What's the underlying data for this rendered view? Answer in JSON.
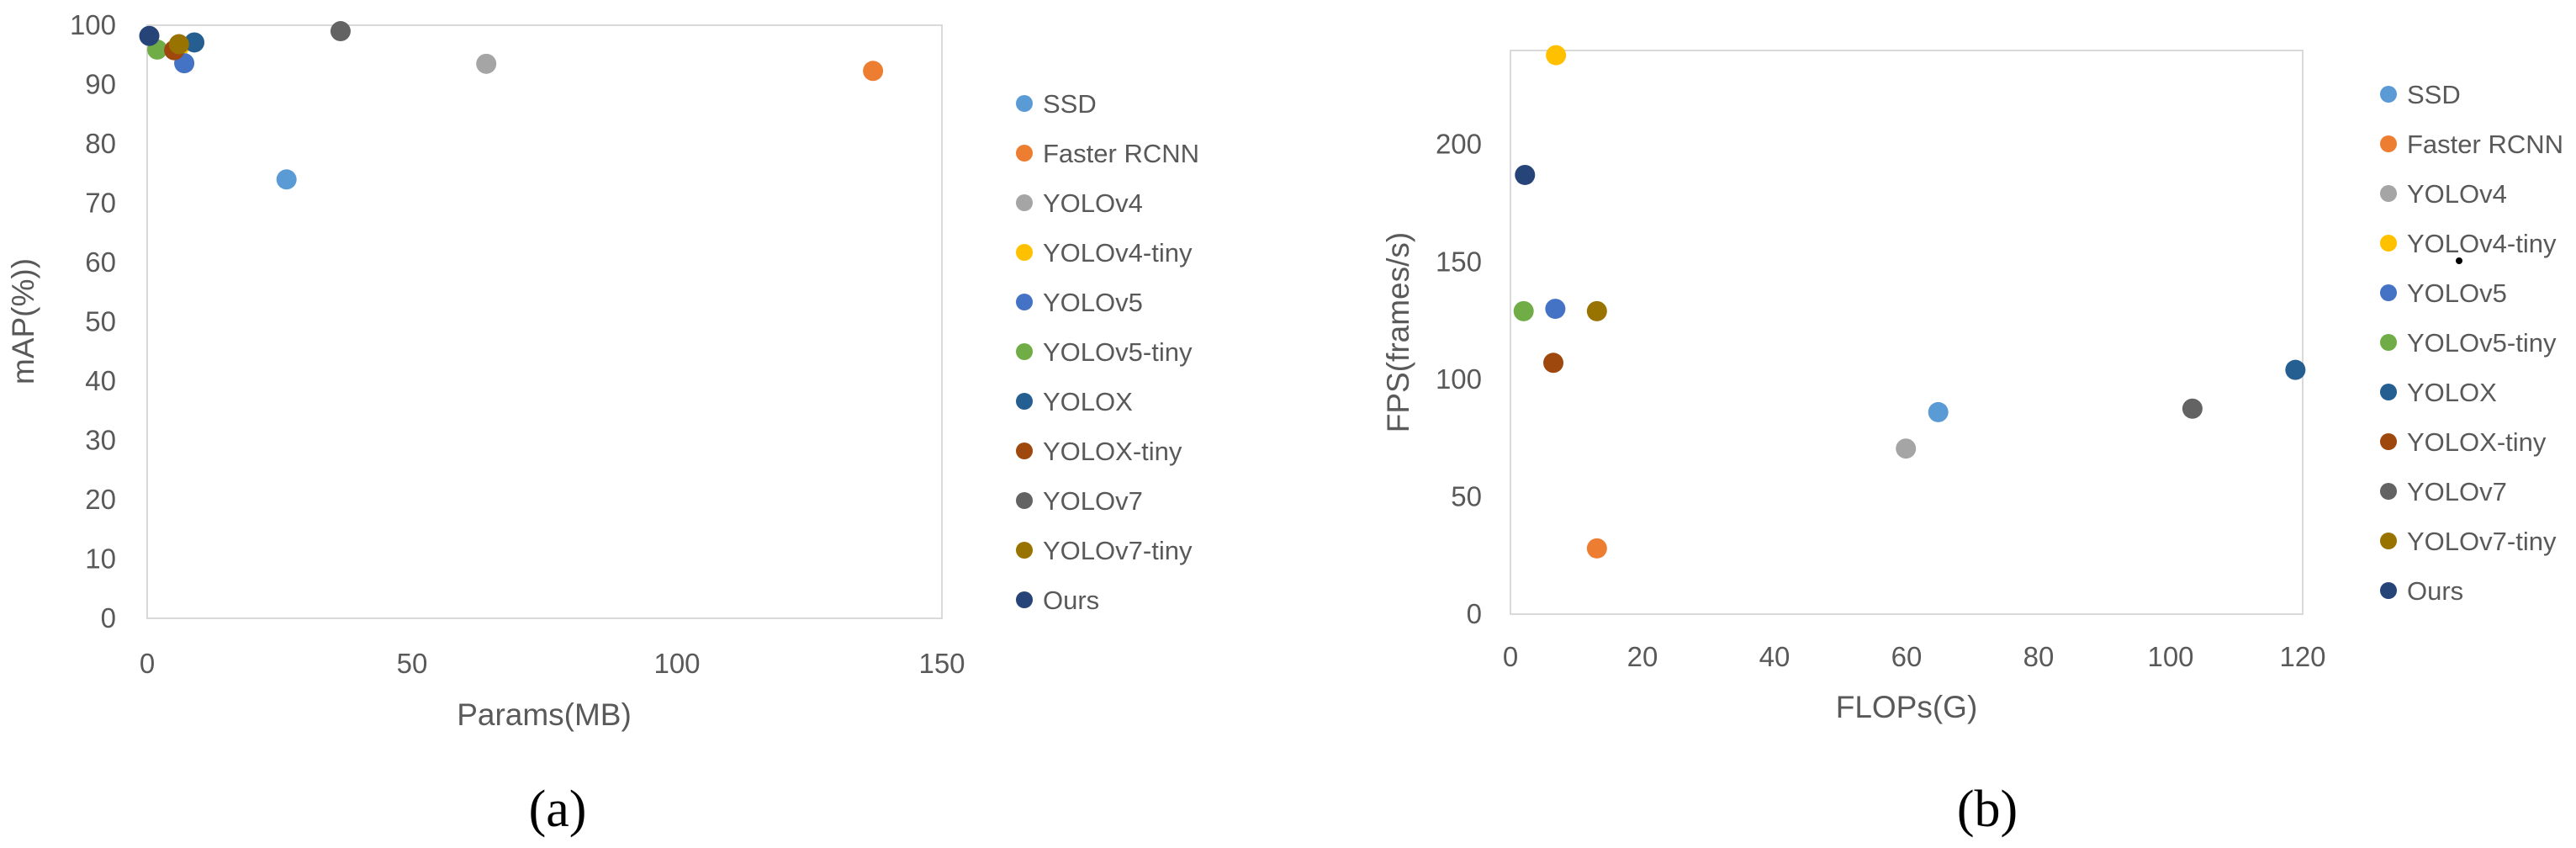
{
  "chart_data": [
    {
      "type": "scatter",
      "caption": "(a)",
      "xlabel": "Params(MB)",
      "ylabel": "mAP(%))",
      "xlim": [
        0,
        150
      ],
      "ylim": [
        0,
        100
      ],
      "xticks": [
        0,
        50,
        100,
        150
      ],
      "yticks": [
        0,
        10,
        20,
        30,
        40,
        50,
        60,
        70,
        80,
        90,
        100
      ],
      "grid": false,
      "legend_position": "right",
      "series": [
        {
          "name": "SSD",
          "color": "#5B9BD5",
          "x": 26.3,
          "y": 74
        },
        {
          "name": "Faster RCNN",
          "color": "#ED7D31",
          "x": 137,
          "y": 92.3
        },
        {
          "name": "YOLOv4",
          "color": "#A5A5A5",
          "x": 64,
          "y": 93.5
        },
        {
          "name": "YOLOv4-tiny",
          "color": "#FFC000",
          "x": 6,
          "y": 96.3
        },
        {
          "name": "YOLOv5",
          "color": "#4472C4",
          "x": 7,
          "y": 93.6
        },
        {
          "name": "YOLOv5-tiny",
          "color": "#70AD47",
          "x": 1.9,
          "y": 95.9
        },
        {
          "name": "YOLOX",
          "color": "#255E91",
          "x": 8.9,
          "y": 97.1
        },
        {
          "name": "YOLOX-tiny",
          "color": "#9E480E",
          "x": 5.1,
          "y": 95.8
        },
        {
          "name": "YOLOv7",
          "color": "#636363",
          "x": 36.5,
          "y": 99
        },
        {
          "name": "YOLOv7-tiny",
          "color": "#997300",
          "x": 6,
          "y": 96.8
        },
        {
          "name": "Ours",
          "color": "#264478",
          "x": 0.4,
          "y": 98.2
        }
      ]
    },
    {
      "type": "scatter",
      "caption": "(b)",
      "xlabel": "FLOPs(G)",
      "ylabel": "FPS(frames/s)",
      "xlim": [
        0,
        120
      ],
      "ylim": [
        0,
        240
      ],
      "xticks": [
        0,
        20,
        40,
        60,
        80,
        100,
        120
      ],
      "yticks": [
        0,
        50,
        100,
        150,
        200
      ],
      "grid": false,
      "legend_position": "right",
      "series": [
        {
          "name": "SSD",
          "color": "#5B9BD5",
          "x": 64.8,
          "y": 86
        },
        {
          "name": "Faster RCNN",
          "color": "#ED7D31",
          "x": 13.1,
          "y": 28
        },
        {
          "name": "YOLOv4",
          "color": "#A5A5A5",
          "x": 59.9,
          "y": 70.5
        },
        {
          "name": "YOLOv4-tiny",
          "color": "#FFC000",
          "x": 6.9,
          "y": 238
        },
        {
          "name": "YOLOv5",
          "color": "#4472C4",
          "x": 6.8,
          "y": 130
        },
        {
          "name": "YOLOv5-tiny",
          "color": "#70AD47",
          "x": 2.0,
          "y": 129
        },
        {
          "name": "YOLOX",
          "color": "#255E91",
          "x": 118.9,
          "y": 104
        },
        {
          "name": "YOLOX-tiny",
          "color": "#9E480E",
          "x": 6.5,
          "y": 107
        },
        {
          "name": "YOLOv7",
          "color": "#636363",
          "x": 103.3,
          "y": 87.5
        },
        {
          "name": "YOLOv7-tiny",
          "color": "#997300",
          "x": 13.1,
          "y": 129
        },
        {
          "name": "Ours",
          "color": "#264478",
          "x": 2.2,
          "y": 187
        }
      ]
    }
  ]
}
